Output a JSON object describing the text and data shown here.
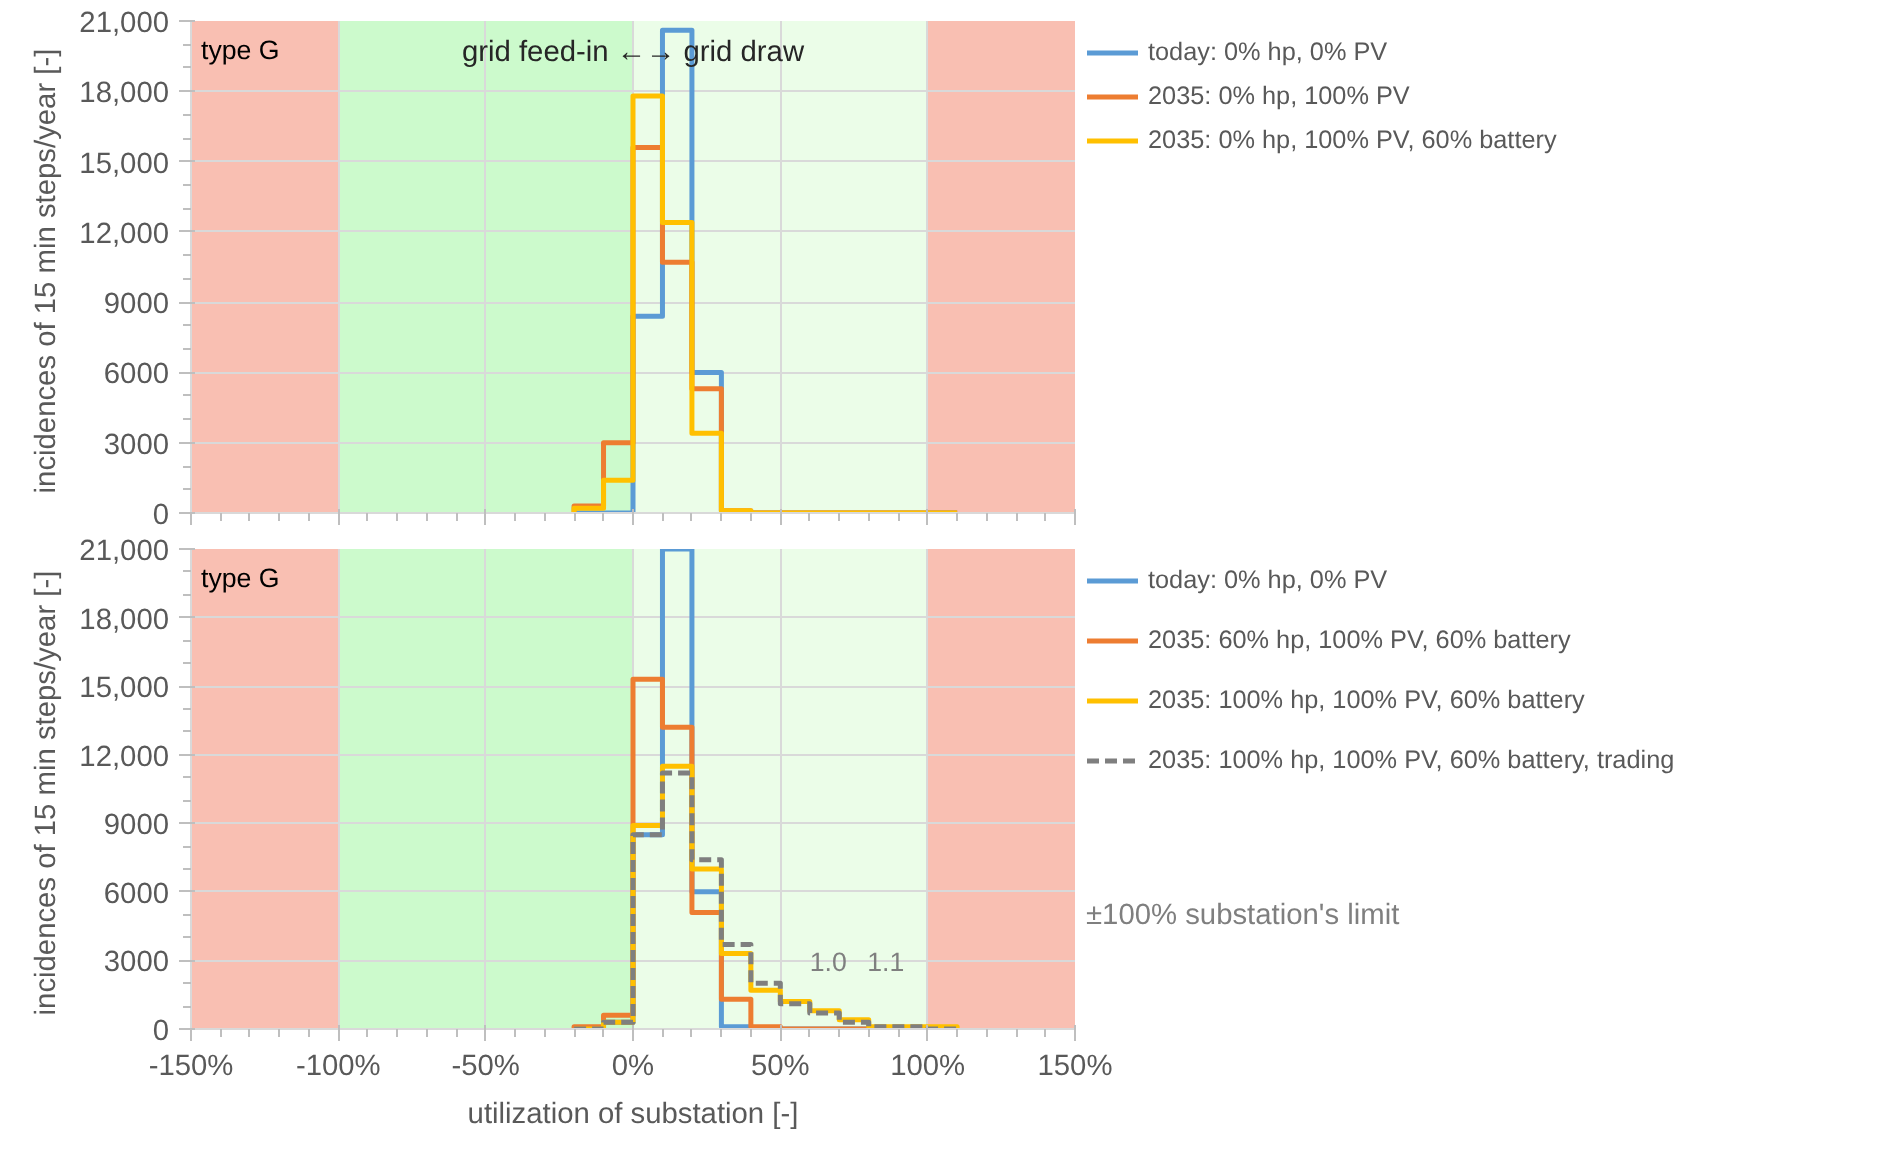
{
  "chart_data": [
    {
      "type": "histogram",
      "ylabel": "incidences of 15 min steps/year  [-]",
      "annotations": [
        "type G",
        "grid feed-in ←→ grid draw"
      ],
      "bins": [
        -20,
        -10,
        0,
        10,
        20,
        30,
        40,
        50,
        60,
        70,
        80,
        90,
        100,
        110
      ],
      "series": [
        {
          "name": "today: 0% hp, 0% PV",
          "color": "#5b9bd5",
          "values": [
            0,
            0,
            8400,
            20600,
            6000,
            0,
            0,
            0,
            0,
            0,
            0,
            0,
            0
          ]
        },
        {
          "name": "2035: 0% hp, 100% PV",
          "color": "#ed7d31",
          "values": [
            300,
            3000,
            15600,
            10700,
            5300,
            100,
            0,
            0,
            0,
            0,
            0,
            0,
            0
          ]
        },
        {
          "name": "2035: 0% hp, 100% PV, 60% battery",
          "color": "#ffc000",
          "values": [
            200,
            1400,
            17800,
            12400,
            3400,
            100,
            0,
            0,
            0,
            0,
            0,
            0,
            0
          ]
        }
      ],
      "xlim": [
        -150,
        150
      ],
      "xticks": [
        {
          "value": -150,
          "label": null
        },
        {
          "value": -100,
          "label": null
        },
        {
          "value": -50,
          "label": null
        },
        {
          "value": 0,
          "label": null
        },
        {
          "value": 50,
          "label": null
        },
        {
          "value": 100,
          "label": null
        },
        {
          "value": 150,
          "label": null
        }
      ],
      "ylim": [
        0,
        21000
      ],
      "yticks": [
        0,
        3000,
        6000,
        9000,
        {
          "value": 12000,
          "label": "12,000"
        },
        {
          "value": 15000,
          "label": "15,000"
        },
        {
          "value": 18000,
          "label": "18,000"
        },
        {
          "value": 21000,
          "label": "21,000"
        }
      ],
      "tick_labels": "y",
      "bands": [
        {
          "axis": "x",
          "from": -150,
          "to": -100,
          "color": "#f9bfb2"
        },
        {
          "axis": "x",
          "from": -100,
          "to": 0,
          "color": "#ccfacc"
        },
        {
          "axis": "x",
          "from": 0,
          "to": 100,
          "color": "#ebfde8"
        },
        {
          "axis": "x",
          "from": 100,
          "to": 150,
          "color": "#f9bfb2"
        }
      ],
      "grid": true,
      "legend": "right"
    },
    {
      "type": "histogram",
      "ylabel": "incidences of 15 min steps/year  [-]",
      "xlabel": "utilization of substation [-]",
      "annotations": [
        "type G",
        "1.0",
        "1.1",
        "±100% substation's limit"
      ],
      "bins": [
        -20,
        -10,
        0,
        10,
        20,
        30,
        40,
        50,
        60,
        70,
        80,
        90,
        100,
        110
      ],
      "series": [
        {
          "name": "today: 0% hp, 0% PV",
          "color": "#5b9bd5",
          "values": [
            0,
            300,
            8500,
            21000,
            6000,
            100,
            0,
            0,
            0,
            0,
            0,
            0,
            0
          ]
        },
        {
          "name": "2035: 60% hp, 100% PV, 60% battery",
          "color": "#ed7d31",
          "values": [
            100,
            600,
            15300,
            13200,
            5100,
            1300,
            100,
            0,
            0,
            0,
            0,
            0,
            0
          ]
        },
        {
          "name": "2035: 100% hp, 100% PV, 60% battery",
          "color": "#ffc000",
          "values": [
            0,
            300,
            8900,
            11500,
            7000,
            3300,
            1700,
            1200,
            800,
            400,
            100,
            100,
            100
          ]
        },
        {
          "name": "2035: 100% hp, 100% PV, 60% battery, trading",
          "color": "#7f7f7f",
          "line_style": "dashed",
          "values": [
            0,
            300,
            8500,
            11200,
            7400,
            3700,
            2000,
            1100,
            700,
            300,
            100,
            100,
            0
          ]
        }
      ],
      "xlim": [
        -150,
        150
      ],
      "xticks": [
        {
          "value": -150,
          "label": "-150%"
        },
        {
          "value": -100,
          "label": "-100%"
        },
        {
          "value": -50,
          "label": "-50%"
        },
        {
          "value": 0,
          "label": "0%"
        },
        {
          "value": 50,
          "label": "50%"
        },
        {
          "value": 100,
          "label": "100%"
        },
        {
          "value": 150,
          "label": "150%"
        }
      ],
      "ylim": [
        0,
        21000
      ],
      "yticks": [
        0,
        3000,
        6000,
        9000,
        {
          "value": 12000,
          "label": "12,000"
        },
        {
          "value": 15000,
          "label": "15,000"
        },
        {
          "value": 18000,
          "label": "18,000"
        },
        {
          "value": 21000,
          "label": "21,000"
        }
      ],
      "bands": [
        {
          "axis": "x",
          "from": -150,
          "to": -100,
          "color": "#f9bfb2"
        },
        {
          "axis": "x",
          "from": -100,
          "to": 0,
          "color": "#ccfacc"
        },
        {
          "axis": "x",
          "from": 0,
          "to": 100,
          "color": "#ebfde8"
        },
        {
          "axis": "x",
          "from": 100,
          "to": 150,
          "color": "#f9bfb2"
        }
      ],
      "grid": true,
      "legend": "right"
    }
  ]
}
